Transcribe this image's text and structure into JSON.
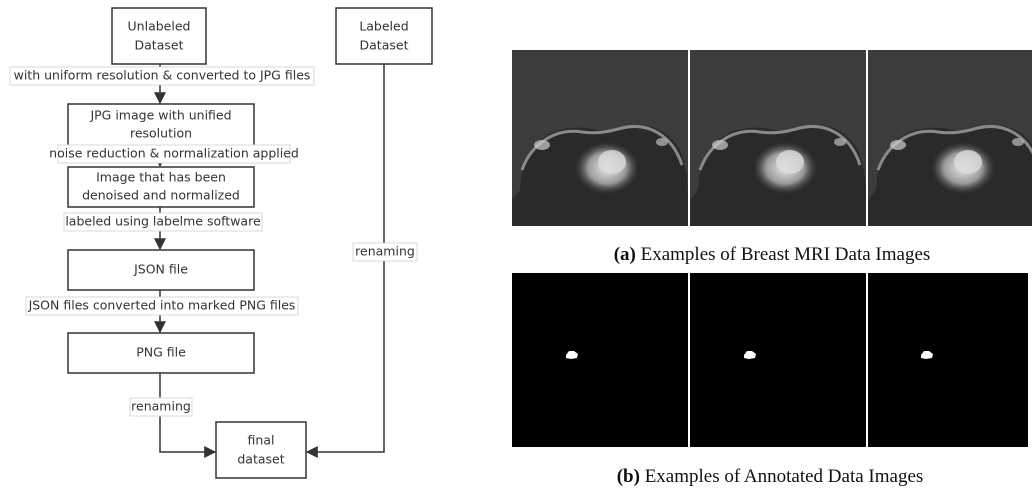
{
  "nodes": [
    {
      "lines": [
        "Unlabeled",
        "Dataset"
      ]
    },
    {
      "lines": [
        "Labeled",
        "Dataset"
      ]
    },
    {
      "lines": [
        "JPG image with unified",
        "resolution"
      ]
    },
    {
      "lines": [
        "Image that has been",
        "denoised and normalized"
      ]
    },
    {
      "lines": [
        "JSON file"
      ]
    },
    {
      "lines": [
        "PNG file"
      ]
    },
    {
      "lines": [
        "final",
        "dataset"
      ]
    }
  ],
  "edges": [
    {
      "label": "with uniform resolution & converted to JPG files"
    },
    {
      "label": "noise reduction & normalization applied"
    },
    {
      "label": "labeled using labelme software"
    },
    {
      "label": "JSON files converted into marked PNG files"
    },
    {
      "label": "renaming"
    },
    {
      "label": "renaming"
    }
  ],
  "captions": [
    {
      "tag": "(a)",
      "text": "Examples of Breast MRI Data Images"
    },
    {
      "tag": "(b)",
      "text": "Examples of Annotated Data Images"
    }
  ]
}
